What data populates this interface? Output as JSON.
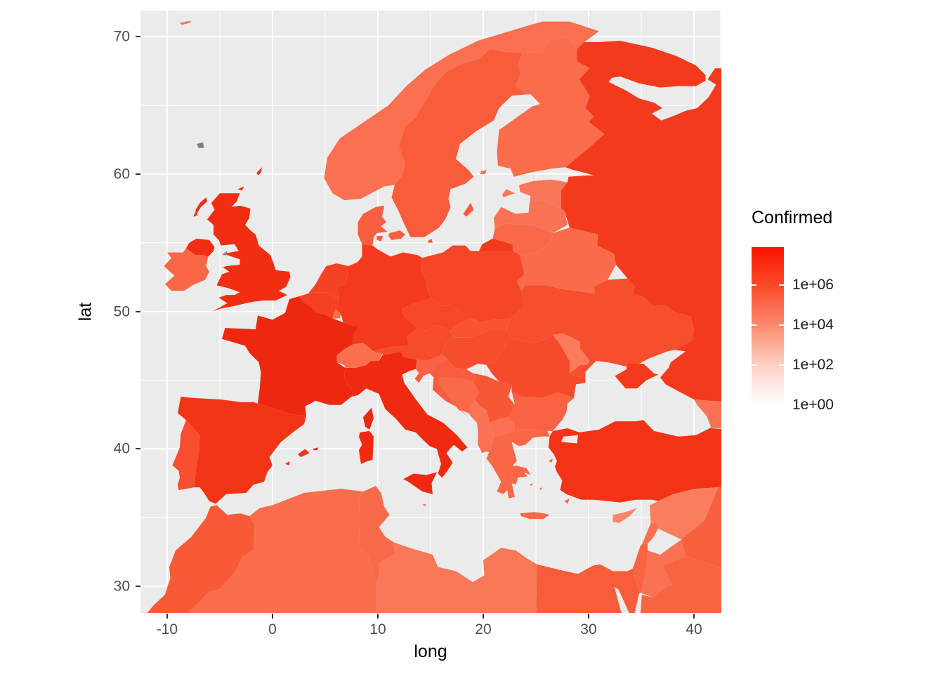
{
  "figure": {
    "background": "#ffffff",
    "panel_background": "#ebebeb",
    "gridline_color": "#ffffff",
    "tick_text_color": "#4d4d4d"
  },
  "legend": {
    "title": "Confirmed",
    "ticks": [
      "1e+06",
      "1e+04",
      "1e+02",
      "1e+00"
    ],
    "gradient_stops": [
      [
        "0%",
        "#fb1200"
      ],
      [
        "23%",
        "#fc4a2a"
      ],
      [
        "47%",
        "#fc8a6e"
      ],
      [
        "71%",
        "#fdd2c7"
      ],
      [
        "95%",
        "#ffffff"
      ],
      [
        "100%",
        "#ffffff"
      ]
    ]
  },
  "chart_data": {
    "type": "choropleth",
    "xlabel": "long",
    "ylabel": "lat",
    "xlim": [
      -12.53,
      42.6
    ],
    "ylim": [
      28.06,
      71.9
    ],
    "x_ticks": [
      "-10",
      "0",
      "10",
      "20",
      "30",
      "40"
    ],
    "y_ticks": [
      "70",
      "60",
      "50",
      "40",
      "30"
    ],
    "x_tick_values": [
      -10,
      0,
      10,
      20,
      30,
      40
    ],
    "y_tick_values": [
      70,
      60,
      50,
      40,
      30
    ],
    "grid": "on",
    "legend_position": "right",
    "sea_color": "#ebebeb",
    "no_data_color": "#7f7f7f",
    "countries": [
      {
        "name": "Russia",
        "fill": "#f43a1c"
      },
      {
        "name": "Jan Mayen",
        "fill": "#fb7050"
      },
      {
        "name": "Norway",
        "fill": "#fb7050"
      },
      {
        "name": "Sweden",
        "fill": "#f85c3a"
      },
      {
        "name": "Finland",
        "fill": "#fa6c4a"
      },
      {
        "name": "Denmark",
        "fill": "#f85e40"
      },
      {
        "name": "Estonia",
        "fill": "#fa7658"
      },
      {
        "name": "Latvia",
        "fill": "#fa7254"
      },
      {
        "name": "Lithuania",
        "fill": "#f96949"
      },
      {
        "name": "Belarus",
        "fill": "#f96b4b"
      },
      {
        "name": "Poland",
        "fill": "#f64527"
      },
      {
        "name": "Germany",
        "fill": "#f43a1c"
      },
      {
        "name": "Netherlands",
        "fill": "#f54223"
      },
      {
        "name": "Belgium",
        "fill": "#f54122"
      },
      {
        "name": "Luxembourg",
        "fill": "#fa7251"
      },
      {
        "name": "United Kingdom",
        "fill": "#f12e12"
      },
      {
        "name": "Ireland",
        "fill": "#f96747"
      },
      {
        "name": "Isle of Man",
        "fill": "#7f7f7f"
      },
      {
        "name": "Faroe Islands",
        "fill": "#7f7f7f"
      },
      {
        "name": "France",
        "fill": "#ee2810"
      },
      {
        "name": "Spain",
        "fill": "#f23416"
      },
      {
        "name": "Portugal",
        "fill": "#f74e2f"
      },
      {
        "name": "Italy",
        "fill": "#ef2a10"
      },
      {
        "name": "Malta",
        "fill": "#fa8060"
      },
      {
        "name": "Switzerland",
        "fill": "#fa6f4e"
      },
      {
        "name": "Austria",
        "fill": "#f64c2d"
      },
      {
        "name": "Czechia",
        "fill": "#f64728"
      },
      {
        "name": "Slovakia",
        "fill": "#f85434"
      },
      {
        "name": "Hungary",
        "fill": "#f64d2d"
      },
      {
        "name": "Slovenia",
        "fill": "#f96245"
      },
      {
        "name": "Croatia",
        "fill": "#f85c3e"
      },
      {
        "name": "Bosnia and Herzegovina",
        "fill": "#f96a4a"
      },
      {
        "name": "Serbia",
        "fill": "#f85736"
      },
      {
        "name": "Montenegro",
        "fill": "#fa7455"
      },
      {
        "name": "Albania",
        "fill": "#fa7153"
      },
      {
        "name": "North Macedonia",
        "fill": "#fa7052"
      },
      {
        "name": "Greece",
        "fill": "#f96747"
      },
      {
        "name": "Bulgaria",
        "fill": "#f96243"
      },
      {
        "name": "Romania",
        "fill": "#f64b2b"
      },
      {
        "name": "Moldova",
        "fill": "#fa7b5c"
      },
      {
        "name": "Ukraine",
        "fill": "#f74e2e"
      },
      {
        "name": "Turkey",
        "fill": "#f33315"
      },
      {
        "name": "Cyprus",
        "fill": "#fb8767"
      },
      {
        "name": "Georgia",
        "fill": "#fa7254"
      },
      {
        "name": "Syria",
        "fill": "#fa7e5e"
      },
      {
        "name": "Lebanon",
        "fill": "#f97050"
      },
      {
        "name": "Israel",
        "fill": "#f96445"
      },
      {
        "name": "Jordan",
        "fill": "#f97252"
      },
      {
        "name": "Iraq",
        "fill": "#f85f3e"
      },
      {
        "name": "Saudi Arabia",
        "fill": "#f86442"
      },
      {
        "name": "Egypt",
        "fill": "#f85c3a"
      },
      {
        "name": "Libya",
        "fill": "#fa7757"
      },
      {
        "name": "Tunisia",
        "fill": "#f96a4a"
      },
      {
        "name": "Algeria",
        "fill": "#fa6e4d"
      },
      {
        "name": "Morocco",
        "fill": "#f85a38"
      },
      {
        "name": "Sea of Marmara",
        "fill": "#ebebeb"
      },
      {
        "name": "Red Sea",
        "fill": "#ebebeb"
      }
    ]
  }
}
